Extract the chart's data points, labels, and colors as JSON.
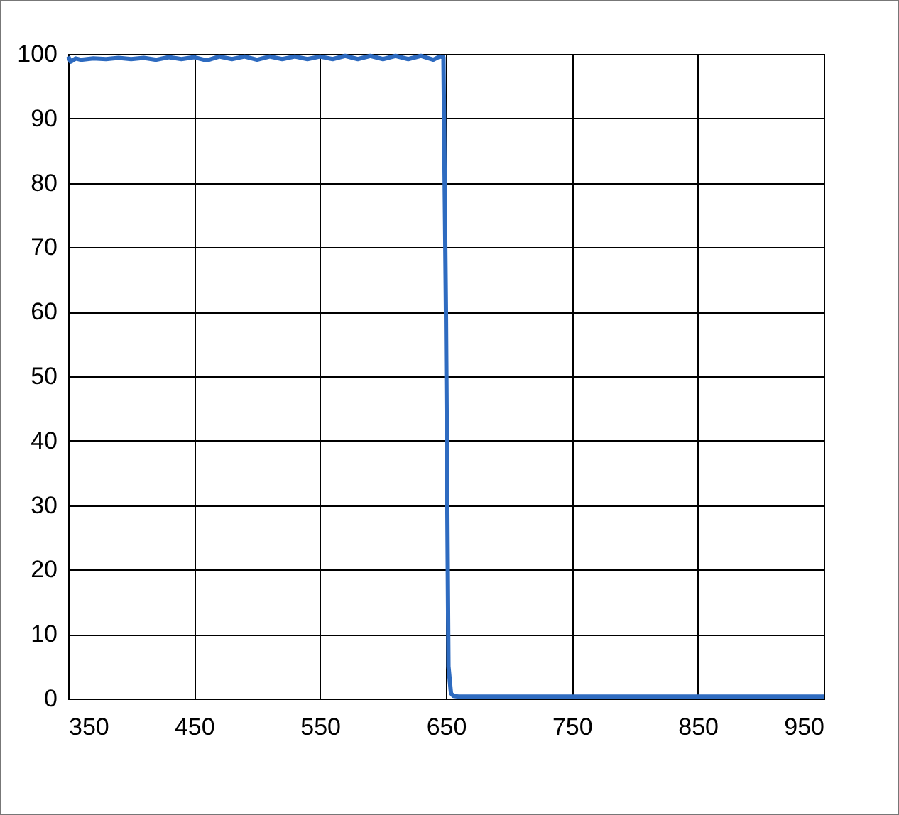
{
  "chart_data": {
    "type": "line",
    "x": [
      350,
      352,
      356,
      360,
      370,
      380,
      390,
      400,
      410,
      420,
      430,
      440,
      450,
      460,
      470,
      480,
      490,
      500,
      510,
      520,
      530,
      540,
      550,
      560,
      570,
      580,
      590,
      600,
      610,
      620,
      630,
      640,
      645,
      648,
      650,
      652,
      654,
      656,
      660,
      700,
      800,
      900,
      950
    ],
    "series": [
      {
        "color": "#2e6bc0",
        "values": [
          99.6,
          98.8,
          99.3,
          99.1,
          99.3,
          99.2,
          99.4,
          99.2,
          99.4,
          99.1,
          99.5,
          99.2,
          99.5,
          99.0,
          99.6,
          99.2,
          99.6,
          99.1,
          99.6,
          99.2,
          99.6,
          99.2,
          99.6,
          99.2,
          99.7,
          99.2,
          99.7,
          99.2,
          99.7,
          99.2,
          99.7,
          99.1,
          99.6,
          99.5,
          60,
          5,
          0.8,
          0.4,
          0.3,
          0.3,
          0.3,
          0.3,
          0.3
        ]
      }
    ],
    "xlim": [
      350,
      950
    ],
    "xticks": [
      350,
      450,
      550,
      650,
      750,
      850,
      950
    ],
    "ylim": [
      0,
      100
    ],
    "yticks": [
      0,
      10,
      20,
      30,
      40,
      50,
      60,
      70,
      80,
      90,
      100
    ],
    "grid": true,
    "legend": false,
    "marker": "none",
    "line_style": "solid"
  }
}
